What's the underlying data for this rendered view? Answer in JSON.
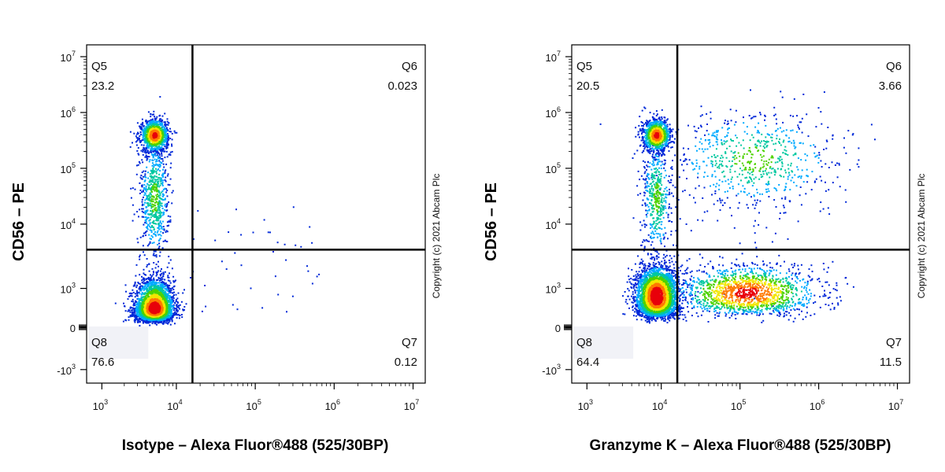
{
  "chart_data": [
    {
      "type": "scatter",
      "plot": "flow-cytometry-quadrant",
      "xlabel": "Isotype – Alexa Fluor®488 (525/30BP)",
      "ylabel": "CD56 – PE",
      "x_scale": "biexponential",
      "y_scale": "biexponential",
      "x_ticks": [
        {
          "base": "10",
          "exp": "3"
        },
        {
          "base": "10",
          "exp": "4"
        },
        {
          "base": "10",
          "exp": "5"
        },
        {
          "base": "10",
          "exp": "6"
        },
        {
          "base": "10",
          "exp": "7"
        }
      ],
      "y_ticks": [
        {
          "base": "10",
          "exp": "7"
        },
        {
          "base": "10",
          "exp": "6"
        },
        {
          "base": "10",
          "exp": "5"
        },
        {
          "base": "10",
          "exp": "4"
        },
        {
          "base": "10",
          "exp": "3"
        },
        {
          "base": "0",
          "exp": ""
        },
        {
          "base": "-10",
          "exp": "3"
        }
      ],
      "gate": {
        "x": 16000,
        "y": 4000
      },
      "quadrants": [
        {
          "name": "Q5",
          "percent": "23.2",
          "position": "top-left"
        },
        {
          "name": "Q6",
          "percent": "0.023",
          "position": "top-right"
        },
        {
          "name": "Q7",
          "percent": "0.12",
          "position": "bottom-right"
        },
        {
          "name": "Q8",
          "percent": "76.6",
          "position": "bottom-left"
        }
      ],
      "populations": [
        {
          "cx": 5000,
          "cy": 500,
          "sx": 0.13,
          "sy": 0.22,
          "n": 3200
        },
        {
          "cx": 5000,
          "cy": 400000,
          "sx": 0.09,
          "sy": 0.14,
          "n": 1100
        },
        {
          "cx": 5000,
          "cy": 30000,
          "sx": 0.1,
          "sy": 0.55,
          "n": 700
        }
      ],
      "copyright": "Copyright (c) 2021 Abcam Plc"
    },
    {
      "type": "scatter",
      "plot": "flow-cytometry-quadrant",
      "xlabel": "Granzyme K – Alexa Fluor®488 (525/30BP)",
      "ylabel": "CD56 – PE",
      "x_scale": "biexponential",
      "y_scale": "biexponential",
      "x_ticks": [
        {
          "base": "10",
          "exp": "3"
        },
        {
          "base": "10",
          "exp": "4"
        },
        {
          "base": "10",
          "exp": "5"
        },
        {
          "base": "10",
          "exp": "6"
        },
        {
          "base": "10",
          "exp": "7"
        }
      ],
      "y_ticks": [
        {
          "base": "10",
          "exp": "7"
        },
        {
          "base": "10",
          "exp": "6"
        },
        {
          "base": "10",
          "exp": "5"
        },
        {
          "base": "10",
          "exp": "4"
        },
        {
          "base": "10",
          "exp": "3"
        },
        {
          "base": "0",
          "exp": ""
        },
        {
          "base": "-10",
          "exp": "3"
        }
      ],
      "gate": {
        "x": 16000,
        "y": 4000
      },
      "quadrants": [
        {
          "name": "Q5",
          "percent": "20.5",
          "position": "top-left"
        },
        {
          "name": "Q6",
          "percent": "3.66",
          "position": "top-right"
        },
        {
          "name": "Q7",
          "percent": "11.5",
          "position": "bottom-right"
        },
        {
          "name": "Q8",
          "percent": "64.4",
          "position": "bottom-left"
        }
      ],
      "populations": [
        {
          "cx": 8500,
          "cy": 800,
          "sx": 0.14,
          "sy": 0.22,
          "n": 3200
        },
        {
          "cx": 8500,
          "cy": 400000,
          "sx": 0.09,
          "sy": 0.14,
          "n": 1000
        },
        {
          "cx": 8500,
          "cy": 30000,
          "sx": 0.1,
          "sy": 0.55,
          "n": 500
        },
        {
          "cx": 120000,
          "cy": 900,
          "sx": 0.45,
          "sy": 0.2,
          "n": 1500
        },
        {
          "cx": 150000,
          "cy": 150000,
          "sx": 0.55,
          "sy": 0.45,
          "n": 700
        }
      ],
      "copyright": "Copyright (c) 2021 Abcam Plc"
    }
  ]
}
